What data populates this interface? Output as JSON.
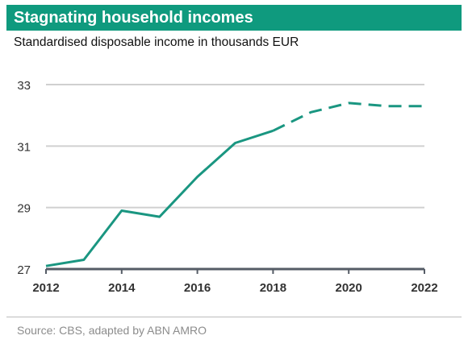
{
  "header": {
    "title": "Stagnating household incomes",
    "subtitle": "Standardised disposable income in thousands EUR"
  },
  "footer": {
    "source": "Source: CBS, adapted by ABN AMRO"
  },
  "colors": {
    "accent": "#0f9a7e",
    "series": "#1a9681",
    "grid": "#d0d0d0",
    "axis": "#555c66",
    "tick_text": "#333333"
  },
  "chart_data": {
    "type": "line",
    "title": "Stagnating household incomes",
    "subtitle": "Standardised disposable income in thousands EUR",
    "xlabel": "",
    "ylabel": "",
    "xlim": [
      2012,
      2022
    ],
    "ylim": [
      27,
      33
    ],
    "x_ticks": [
      2012,
      2014,
      2016,
      2018,
      2020,
      2022
    ],
    "y_ticks": [
      27,
      29,
      31,
      33
    ],
    "grid": true,
    "legend": "none",
    "series": [
      {
        "style": "solid",
        "x": [
          2012,
          2013,
          2014,
          2015,
          2016,
          2017,
          2018
        ],
        "y": [
          27.1,
          27.3,
          28.9,
          28.7,
          30.0,
          31.1,
          31.5
        ]
      },
      {
        "style": "dashed",
        "x": [
          2018,
          2019,
          2020,
          2021,
          2022
        ],
        "y": [
          31.5,
          32.1,
          32.4,
          32.3,
          32.3
        ]
      }
    ]
  }
}
